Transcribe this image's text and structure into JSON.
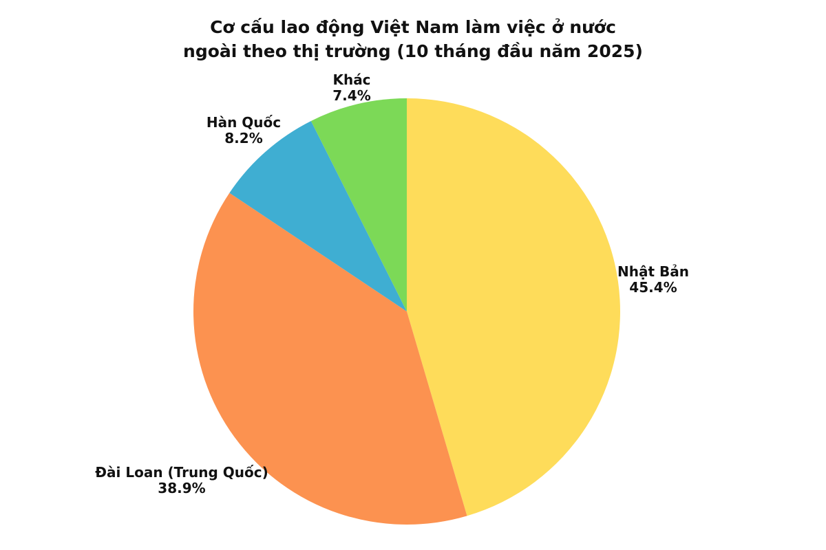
{
  "chart_data": {
    "type": "pie",
    "title": "Cơ cấu lao động Việt Nam làm việc ở nước ngoài theo thị trường (10 tháng đầu năm 2025)",
    "title_lines": [
      "Cơ cấu lao động Việt Nam làm việc ở nước",
      "ngoài theo thị trường (10 tháng đầu năm 2025)"
    ],
    "unit": "%",
    "start_angle": "12-oclock",
    "direction": "clockwise",
    "legend": "none",
    "label_placement": "outside",
    "background_color": "#FFFFFF",
    "text_color": "#111111",
    "slices": [
      {
        "id": "nhat-ban",
        "label": "Nhật Bản",
        "value": 45.4,
        "pct_label": "45.4%",
        "color": "#FEDC5A"
      },
      {
        "id": "dai-loan",
        "label": "Đài Loan (Trung Quốc)",
        "value": 38.9,
        "pct_label": "38.9%",
        "color": "#FC9250"
      },
      {
        "id": "han-quoc",
        "label": "Hàn Quốc",
        "value": 8.2,
        "pct_label": "8.2%",
        "color": "#3FAED2"
      },
      {
        "id": "khac",
        "label": "Khác",
        "value": 7.4,
        "pct_label": "7.4%",
        "color": "#7CD957"
      }
    ]
  }
}
